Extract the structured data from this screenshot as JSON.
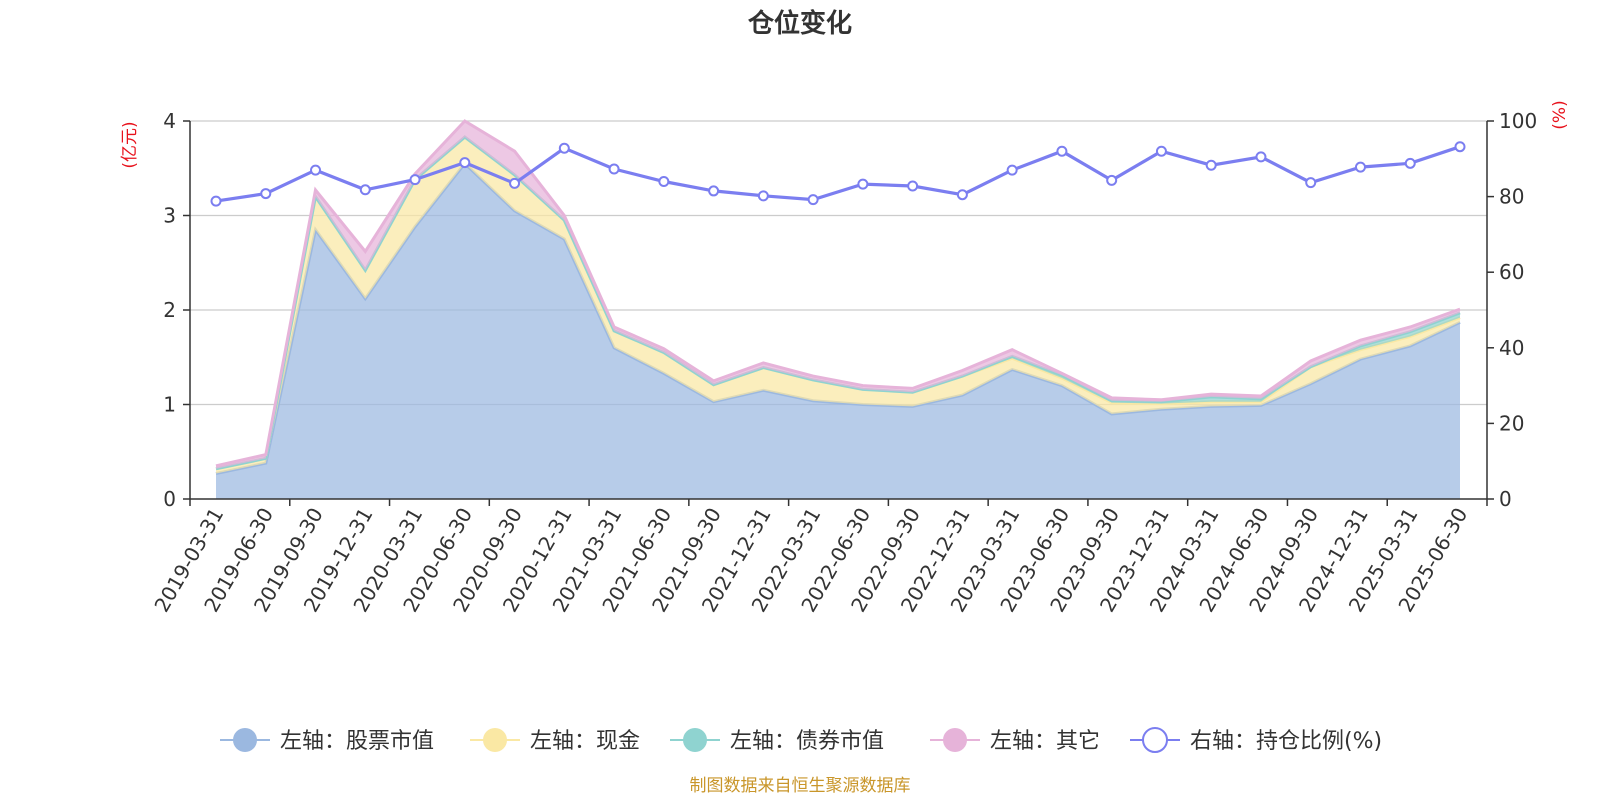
{
  "chart_data": {
    "type": "area",
    "title": "仓位变化",
    "left_axis_unit": "(亿元)",
    "right_axis_unit": "(%)",
    "x": [
      "2019-03-31",
      "2019-06-30",
      "2019-09-30",
      "2019-12-31",
      "2020-03-31",
      "2020-06-30",
      "2020-09-30",
      "2020-12-31",
      "2021-03-31",
      "2021-06-30",
      "2021-09-30",
      "2021-12-31",
      "2022-03-31",
      "2022-06-30",
      "2022-09-30",
      "2022-12-31",
      "2023-03-31",
      "2023-06-30",
      "2023-09-30",
      "2023-12-31",
      "2024-03-31",
      "2024-06-30",
      "2024-09-30",
      "2024-12-31",
      "2025-03-31",
      "2025-06-30"
    ],
    "ylim_left": [
      0,
      4
    ],
    "yticks_left": [
      0,
      1,
      2,
      3,
      4
    ],
    "ylim_right": [
      0,
      100
    ],
    "yticks_right": [
      0,
      20,
      40,
      60,
      80,
      100
    ],
    "grid": true,
    "legend_position": "bottom",
    "series": [
      {
        "name": "左轴：股票市值",
        "axis": "left",
        "kind": "area",
        "color": "#9bb8e0",
        "values": [
          0.27,
          0.38,
          2.85,
          2.12,
          2.88,
          3.55,
          3.05,
          2.75,
          1.6,
          1.33,
          1.03,
          1.15,
          1.04,
          1.0,
          0.98,
          1.1,
          1.37,
          1.2,
          0.9,
          0.95,
          0.98,
          0.99,
          1.22,
          1.48,
          1.62,
          1.87
        ]
      },
      {
        "name": "左轴：现金",
        "axis": "left",
        "kind": "area",
        "color": "#fae8a4",
        "values": [
          0.05,
          0.05,
          0.35,
          0.3,
          0.5,
          0.28,
          0.38,
          0.2,
          0.18,
          0.22,
          0.18,
          0.24,
          0.22,
          0.16,
          0.15,
          0.2,
          0.12,
          0.08,
          0.12,
          0.06,
          0.05,
          0.04,
          0.18,
          0.1,
          0.1,
          0.05
        ]
      },
      {
        "name": "左轴：债券市值",
        "axis": "left",
        "kind": "area",
        "color": "#8fd3d0",
        "values": [
          0,
          0,
          0,
          0,
          0,
          0,
          0,
          0,
          0,
          0,
          0,
          0,
          0,
          0,
          0,
          0,
          0.02,
          0.03,
          0.02,
          0.02,
          0.05,
          0.03,
          0,
          0.04,
          0.05,
          0.05
        ]
      },
      {
        "name": "左轴：其它",
        "axis": "left",
        "kind": "area",
        "color": "#e6b3d9",
        "values": [
          0.03,
          0.04,
          0.07,
          0.2,
          0.06,
          0.17,
          0.25,
          0.05,
          0.04,
          0.04,
          0.04,
          0.05,
          0.04,
          0.04,
          0.04,
          0.06,
          0.07,
          0.02,
          0.03,
          0.02,
          0.03,
          0.03,
          0.06,
          0.06,
          0.05,
          0.04
        ]
      },
      {
        "name": "右轴：持仓比例(%)",
        "axis": "right",
        "kind": "line",
        "color": "#7b7ef0",
        "values": [
          78.8,
          80.8,
          87.0,
          81.8,
          84.5,
          89.0,
          83.5,
          92.8,
          87.3,
          84.0,
          81.5,
          80.2,
          79.2,
          83.3,
          82.8,
          80.5,
          87.0,
          92.0,
          84.3,
          92.0,
          88.3,
          90.5,
          83.7,
          87.8,
          88.8,
          93.2
        ]
      }
    ]
  },
  "source_text": "制图数据来自恒生聚源数据库"
}
